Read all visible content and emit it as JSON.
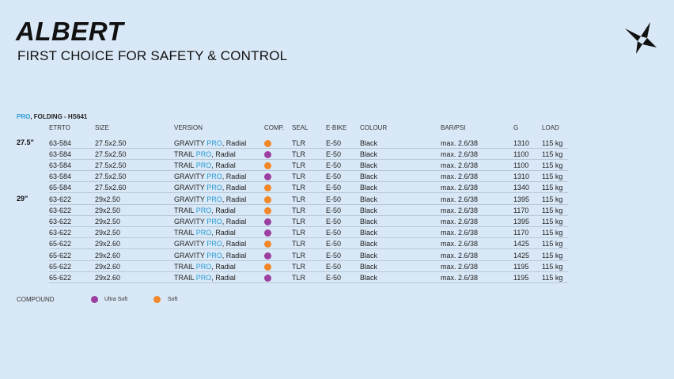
{
  "header": {
    "title": "ALBERT",
    "subtitle": "FIRST CHOICE FOR SAFETY & CONTROL"
  },
  "section": {
    "pro": "PRO",
    "rest": ", FOLDING - HS641"
  },
  "columns": [
    "ETRTO",
    "SIZE",
    "VERSION",
    "COMP.",
    "SEAL",
    "E-BIKE",
    "COLOUR",
    "BAR/PSI",
    "G",
    "LOAD"
  ],
  "colors": {
    "ultra_soft": "#9b3fa0",
    "soft": "#f0882a",
    "accent": "#2a9bd3"
  },
  "groups": [
    {
      "label": "27.5\"",
      "rows": [
        {
          "etrto": "63-584",
          "size": "27.5x2.50",
          "v1": "GRAVITY ",
          "v2": "PRO",
          "v3": ", Radial",
          "comp": "soft",
          "seal": "TLR",
          "ebike": "E-50",
          "colour": "Black",
          "psi": "max. 2.6/38",
          "g": "1310",
          "load": "115 kg"
        },
        {
          "etrto": "63-584",
          "size": "27.5x2.50",
          "v1": "TRAIL ",
          "v2": "PRO",
          "v3": ", Radial",
          "comp": "ultra_soft",
          "seal": "TLR",
          "ebike": "E-50",
          "colour": "Black",
          "psi": "max. 2.6/38",
          "g": "1100",
          "load": "115 kg"
        },
        {
          "etrto": "63-584",
          "size": "27.5x2.50",
          "v1": "TRAIL ",
          "v2": "PRO",
          "v3": ", Radial",
          "comp": "soft",
          "seal": "TLR",
          "ebike": "E-50",
          "colour": "Black",
          "psi": "max. 2.6/38",
          "g": "1100",
          "load": "115 kg"
        },
        {
          "etrto": "63-584",
          "size": "27.5x2.50",
          "v1": "GRAVITY ",
          "v2": "PRO",
          "v3": ", Radial",
          "comp": "ultra_soft",
          "seal": "TLR",
          "ebike": "E-50",
          "colour": "Black",
          "psi": "max. 2.6/38",
          "g": "1310",
          "load": "115 kg"
        },
        {
          "etrto": "65-584",
          "size": "27.5x2.60",
          "v1": "GRAVITY ",
          "v2": "PRO",
          "v3": ", Radial",
          "comp": "soft",
          "seal": "TLR",
          "ebike": "E-50",
          "colour": "Black",
          "psi": "max. 2.6/38",
          "g": "1340",
          "load": "115 kg"
        }
      ]
    },
    {
      "label": "29\"",
      "rows": [
        {
          "etrto": "63-622",
          "size": "29x2.50",
          "v1": "GRAVITY ",
          "v2": "PRO",
          "v3": ", Radial",
          "comp": "soft",
          "seal": "TLR",
          "ebike": "E-50",
          "colour": "Black",
          "psi": "max. 2.6/38",
          "g": "1395",
          "load": "115 kg"
        },
        {
          "etrto": "63-622",
          "size": "29x2.50",
          "v1": "TRAIL ",
          "v2": "PRO",
          "v3": ", Radial",
          "comp": "soft",
          "seal": "TLR",
          "ebike": "E-50",
          "colour": "Black",
          "psi": "max. 2.6/38",
          "g": "1170",
          "load": "115 kg"
        },
        {
          "etrto": "63-622",
          "size": "29x2.50",
          "v1": "GRAVITY ",
          "v2": "PRO",
          "v3": ", Radial",
          "comp": "ultra_soft",
          "seal": "TLR",
          "ebike": "E-50",
          "colour": "Black",
          "psi": "max. 2.6/38",
          "g": "1395",
          "load": "115 kg"
        },
        {
          "etrto": "63-622",
          "size": "29x2.50",
          "v1": "TRAIL ",
          "v2": "PRO",
          "v3": ", Radial",
          "comp": "ultra_soft",
          "seal": "TLR",
          "ebike": "E-50",
          "colour": "Black",
          "psi": "max. 2.6/38",
          "g": "1170",
          "load": "115 kg"
        },
        {
          "etrto": "65-622",
          "size": "29x2.60",
          "v1": "GRAVITY ",
          "v2": "PRO",
          "v3": ", Radial",
          "comp": "soft",
          "seal": "TLR",
          "ebike": "E-50",
          "colour": "Black",
          "psi": "max. 2.6/38",
          "g": "1425",
          "load": "115 kg"
        },
        {
          "etrto": "65-622",
          "size": "29x2.60",
          "v1": "GRAVITY ",
          "v2": "PRO",
          "v3": ", Radial",
          "comp": "ultra_soft",
          "seal": "TLR",
          "ebike": "E-50",
          "colour": "Black",
          "psi": "max. 2.6/38",
          "g": "1425",
          "load": "115 kg"
        },
        {
          "etrto": "65-622",
          "size": "29x2.60",
          "v1": "TRAIL ",
          "v2": "PRO",
          "v3": ", Radial",
          "comp": "soft",
          "seal": "TLR",
          "ebike": "E-50",
          "colour": "Black",
          "psi": "max. 2.6/38",
          "g": "1195",
          "load": "115 kg"
        },
        {
          "etrto": "65-622",
          "size": "29x2.60",
          "v1": "TRAIL ",
          "v2": "PRO",
          "v3": ", Radial",
          "comp": "ultra_soft",
          "seal": "TLR",
          "ebike": "E-50",
          "colour": "Black",
          "psi": "max. 2.6/38",
          "g": "1195",
          "load": "115 kg"
        }
      ]
    }
  ],
  "legend": {
    "label": "COMPOUND",
    "items": [
      {
        "key": "ultra_soft",
        "label": "Ultra Soft"
      },
      {
        "key": "soft",
        "label": "Soft"
      }
    ]
  }
}
